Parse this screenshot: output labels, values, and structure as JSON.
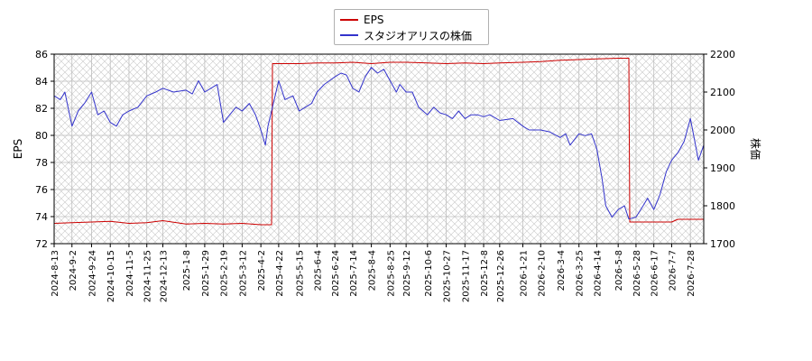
{
  "chart_data": {
    "type": "line",
    "title": "",
    "xlabel": "",
    "ylabel": "EPS",
    "y2label": "株価",
    "grid": true,
    "legend_placement": "top-center",
    "ylim": [
      72,
      86
    ],
    "y2lim": [
      1700,
      2200
    ],
    "yticks": [
      72,
      74,
      76,
      78,
      80,
      82,
      84,
      86
    ],
    "y2ticks": [
      1700,
      1800,
      1900,
      2000,
      2100,
      2200
    ],
    "x_range": [
      "2024-08-13",
      "2026-08-12"
    ],
    "x_tick_labels": [
      "2024-8-13",
      "2024-9-2",
      "2024-9-24",
      "2024-10-15",
      "2024-11-5",
      "2024-11-25",
      "2024-12-13",
      "2025-1-8",
      "2025-1-29",
      "2025-2-19",
      "2025-3-12",
      "2025-4-2",
      "2025-4-22",
      "2025-5-15",
      "2025-6-4",
      "2025-6-24",
      "2025-7-14",
      "2025-8-4",
      "2025-8-25",
      "2025-9-12",
      "2025-10-6",
      "2025-10-27",
      "2025-11-17",
      "2025-12-8",
      "2025-12-26",
      "2026-1-21",
      "2026-2-10",
      "2026-3-4",
      "2026-3-25",
      "2026-4-14",
      "2026-5-8",
      "2026-5-28",
      "2026-6-17",
      "2026-7-7",
      "2026-7-28"
    ],
    "series": [
      {
        "name": "EPS",
        "color": "#cc0000",
        "axis": "left",
        "points": [
          [
            "2024-08-13",
            73.5
          ],
          [
            "2024-09-02",
            73.55
          ],
          [
            "2024-09-24",
            73.6
          ],
          [
            "2024-10-15",
            73.65
          ],
          [
            "2024-11-05",
            73.5
          ],
          [
            "2024-11-25",
            73.55
          ],
          [
            "2024-12-13",
            73.7
          ],
          [
            "2025-01-08",
            73.45
          ],
          [
            "2025-01-29",
            73.5
          ],
          [
            "2025-02-19",
            73.45
          ],
          [
            "2025-03-12",
            73.5
          ],
          [
            "2025-04-02",
            73.4
          ],
          [
            "2025-04-14",
            73.4
          ],
          [
            "2025-04-15",
            85.3
          ],
          [
            "2025-05-15",
            85.3
          ],
          [
            "2025-06-04",
            85.35
          ],
          [
            "2025-06-24",
            85.35
          ],
          [
            "2025-07-14",
            85.4
          ],
          [
            "2025-08-04",
            85.3
          ],
          [
            "2025-08-25",
            85.4
          ],
          [
            "2025-09-12",
            85.4
          ],
          [
            "2025-10-06",
            85.35
          ],
          [
            "2025-10-27",
            85.3
          ],
          [
            "2025-11-17",
            85.35
          ],
          [
            "2025-12-08",
            85.3
          ],
          [
            "2025-12-26",
            85.35
          ],
          [
            "2026-01-21",
            85.4
          ],
          [
            "2026-02-10",
            85.45
          ],
          [
            "2026-03-04",
            85.55
          ],
          [
            "2026-03-25",
            85.6
          ],
          [
            "2026-04-14",
            85.65
          ],
          [
            "2026-05-08",
            85.7
          ],
          [
            "2026-05-20",
            85.7
          ],
          [
            "2026-05-21",
            73.6
          ],
          [
            "2026-06-17",
            73.6
          ],
          [
            "2026-07-07",
            73.6
          ],
          [
            "2026-07-14",
            73.8
          ],
          [
            "2026-08-12",
            73.8
          ]
        ]
      },
      {
        "name": "スタジオアリスの株価",
        "color": "#3333cc",
        "axis": "right",
        "points": [
          [
            "2024-08-13",
            2090
          ],
          [
            "2024-08-20",
            2080
          ],
          [
            "2024-08-25",
            2100
          ],
          [
            "2024-09-02",
            2010
          ],
          [
            "2024-09-09",
            2050
          ],
          [
            "2024-09-16",
            2070
          ],
          [
            "2024-09-24",
            2100
          ],
          [
            "2024-10-01",
            2040
          ],
          [
            "2024-10-08",
            2050
          ],
          [
            "2024-10-15",
            2020
          ],
          [
            "2024-10-22",
            2010
          ],
          [
            "2024-10-29",
            2040
          ],
          [
            "2024-11-05",
            2050
          ],
          [
            "2024-11-15",
            2060
          ],
          [
            "2024-11-25",
            2090
          ],
          [
            "2024-12-05",
            2100
          ],
          [
            "2024-12-13",
            2110
          ],
          [
            "2024-12-25",
            2100
          ],
          [
            "2025-01-08",
            2105
          ],
          [
            "2025-01-15",
            2095
          ],
          [
            "2025-01-22",
            2130
          ],
          [
            "2025-01-29",
            2100
          ],
          [
            "2025-02-05",
            2110
          ],
          [
            "2025-02-12",
            2120
          ],
          [
            "2025-02-19",
            2020
          ],
          [
            "2025-02-26",
            2040
          ],
          [
            "2025-03-05",
            2060
          ],
          [
            "2025-03-12",
            2050
          ],
          [
            "2025-03-20",
            2070
          ],
          [
            "2025-03-27",
            2040
          ],
          [
            "2025-04-02",
            2000
          ],
          [
            "2025-04-07",
            1960
          ],
          [
            "2025-04-10",
            2010
          ],
          [
            "2025-04-15",
            2060
          ],
          [
            "2025-04-22",
            2130
          ],
          [
            "2025-04-29",
            2080
          ],
          [
            "2025-05-08",
            2090
          ],
          [
            "2025-05-15",
            2050
          ],
          [
            "2025-05-22",
            2060
          ],
          [
            "2025-05-29",
            2070
          ],
          [
            "2025-06-04",
            2100
          ],
          [
            "2025-06-12",
            2120
          ],
          [
            "2025-06-18",
            2130
          ],
          [
            "2025-06-24",
            2140
          ],
          [
            "2025-07-01",
            2150
          ],
          [
            "2025-07-07",
            2145
          ],
          [
            "2025-07-14",
            2110
          ],
          [
            "2025-07-21",
            2100
          ],
          [
            "2025-07-28",
            2140
          ],
          [
            "2025-08-04",
            2165
          ],
          [
            "2025-08-11",
            2150
          ],
          [
            "2025-08-18",
            2160
          ],
          [
            "2025-08-25",
            2130
          ],
          [
            "2025-09-01",
            2100
          ],
          [
            "2025-09-05",
            2120
          ],
          [
            "2025-09-12",
            2100
          ],
          [
            "2025-09-19",
            2100
          ],
          [
            "2025-09-26",
            2060
          ],
          [
            "2025-10-06",
            2040
          ],
          [
            "2025-10-13",
            2060
          ],
          [
            "2025-10-20",
            2045
          ],
          [
            "2025-10-27",
            2040
          ],
          [
            "2025-11-03",
            2030
          ],
          [
            "2025-11-10",
            2050
          ],
          [
            "2025-11-17",
            2030
          ],
          [
            "2025-11-24",
            2040
          ],
          [
            "2025-12-01",
            2040
          ],
          [
            "2025-12-08",
            2035
          ],
          [
            "2025-12-15",
            2040
          ],
          [
            "2025-12-26",
            2025
          ],
          [
            "2026-01-10",
            2030
          ],
          [
            "2026-01-21",
            2010
          ],
          [
            "2026-01-28",
            2000
          ],
          [
            "2026-02-10",
            2000
          ],
          [
            "2026-02-20",
            1995
          ],
          [
            "2026-03-04",
            1980
          ],
          [
            "2026-03-10",
            1990
          ],
          [
            "2026-03-15",
            1960
          ],
          [
            "2026-03-25",
            1990
          ],
          [
            "2026-04-01",
            1985
          ],
          [
            "2026-04-08",
            1990
          ],
          [
            "2026-04-14",
            1950
          ],
          [
            "2026-04-20",
            1870
          ],
          [
            "2026-04-24",
            1800
          ],
          [
            "2026-05-01",
            1770
          ],
          [
            "2026-05-08",
            1790
          ],
          [
            "2026-05-15",
            1800
          ],
          [
            "2026-05-20",
            1765
          ],
          [
            "2026-05-28",
            1770
          ],
          [
            "2026-06-05",
            1800
          ],
          [
            "2026-06-10",
            1820
          ],
          [
            "2026-06-17",
            1790
          ],
          [
            "2026-06-24",
            1830
          ],
          [
            "2026-07-01",
            1890
          ],
          [
            "2026-07-07",
            1920
          ],
          [
            "2026-07-14",
            1940
          ],
          [
            "2026-07-21",
            1970
          ],
          [
            "2026-07-28",
            2030
          ],
          [
            "2026-08-02",
            1970
          ],
          [
            "2026-08-06",
            1920
          ],
          [
            "2026-08-12",
            1960
          ]
        ]
      }
    ]
  }
}
